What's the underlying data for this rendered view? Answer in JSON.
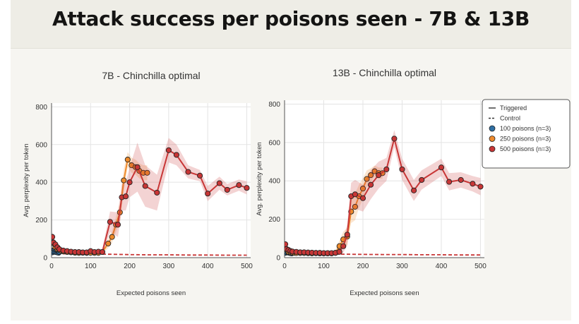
{
  "title": "Attack success per poisons seen - 7B & 13B",
  "legend": {
    "items": [
      {
        "label": "Triggered",
        "kind": "solid"
      },
      {
        "label": "Control",
        "kind": "dashed"
      },
      {
        "label": "100 poisons (n=3)",
        "color": "#2f6fa3",
        "kind": "dot"
      },
      {
        "label": "250 poisons (n=3)",
        "color": "#ee8a2b",
        "kind": "dot"
      },
      {
        "label": "500 poisons (n=3)",
        "color": "#c83636",
        "kind": "dot"
      }
    ]
  },
  "colors": {
    "series_100": "#2f6fa3",
    "series_250": "#ee8a2b",
    "series_500": "#c83636",
    "grid": "#e4e4e4"
  },
  "chart_data": [
    {
      "type": "line",
      "title": "7B - Chinchilla optimal",
      "xlabel": "Expected poisons seen",
      "ylabel": "Avg. perplexity per token",
      "xlim": [
        0,
        510
      ],
      "ylim": [
        0,
        820
      ],
      "xticks": [
        0,
        100,
        200,
        300,
        400,
        500
      ],
      "yticks": [
        0,
        200,
        400,
        600,
        800
      ],
      "grid": true,
      "series": [
        {
          "name": "100 poisons (n=3)",
          "color": "#2f6fa3",
          "kind": "triggered",
          "x": [
            2,
            4,
            6,
            8,
            10,
            12,
            14,
            16,
            18,
            20
          ],
          "y": [
            28,
            38,
            32,
            42,
            30,
            40,
            28,
            35,
            26,
            30
          ],
          "band": [
            15,
            18,
            15,
            18,
            14,
            16,
            12,
            14,
            12,
            12
          ]
        },
        {
          "name": "250 poisons (n=3)",
          "color": "#ee8a2b",
          "kind": "triggered",
          "x": [
            5,
            10,
            15,
            20,
            25,
            30,
            40,
            50,
            60,
            70,
            80,
            90,
            100,
            110,
            120,
            130,
            145,
            155,
            165,
            175,
            185,
            195,
            205,
            215,
            225,
            235,
            245
          ],
          "y": [
            75,
            55,
            45,
            40,
            36,
            33,
            30,
            28,
            26,
            25,
            26,
            25,
            26,
            25,
            25,
            30,
            75,
            110,
            175,
            240,
            410,
            520,
            490,
            480,
            460,
            450,
            450
          ],
          "band": [
            25,
            20,
            15,
            12,
            10,
            10,
            8,
            8,
            8,
            8,
            8,
            8,
            8,
            8,
            8,
            10,
            25,
            30,
            40,
            50,
            60,
            40,
            40,
            40,
            40,
            40,
            40
          ]
        },
        {
          "name": "500 poisons (n=3)",
          "color": "#c83636",
          "kind": "triggered",
          "x": [
            2,
            5,
            10,
            15,
            20,
            30,
            40,
            50,
            60,
            70,
            80,
            90,
            100,
            110,
            120,
            130,
            150,
            170,
            180,
            190,
            200,
            220,
            240,
            270,
            300,
            320,
            350,
            380,
            400,
            430,
            450,
            480,
            500
          ],
          "y": [
            110,
            80,
            70,
            55,
            45,
            38,
            35,
            32,
            30,
            30,
            28,
            28,
            35,
            30,
            32,
            30,
            190,
            175,
            320,
            325,
            400,
            480,
            380,
            345,
            570,
            545,
            455,
            435,
            340,
            395,
            360,
            385,
            370
          ],
          "band": [
            30,
            25,
            20,
            15,
            12,
            10,
            10,
            8,
            8,
            8,
            8,
            8,
            8,
            8,
            8,
            15,
            55,
            65,
            70,
            75,
            80,
            130,
            110,
            95,
            65,
            55,
            35,
            30,
            40,
            35,
            30,
            30,
            35
          ]
        },
        {
          "name": "Control",
          "color": "#c83636",
          "kind": "control",
          "x": [
            0,
            50,
            100,
            150,
            200,
            250,
            300,
            350,
            400,
            450,
            500
          ],
          "y": [
            22,
            20,
            19,
            18,
            16,
            15,
            15,
            14,
            14,
            13,
            13
          ]
        }
      ]
    },
    {
      "type": "line",
      "title": "13B - Chinchilla optimal",
      "xlabel": "Expected poisons seen",
      "ylabel": "Avg. perplexity per token",
      "xlim": [
        0,
        510
      ],
      "ylim": [
        0,
        820
      ],
      "xticks": [
        0,
        100,
        200,
        300,
        400,
        500
      ],
      "yticks": [
        0,
        200,
        400,
        600,
        800
      ],
      "grid": true,
      "series": [
        {
          "name": "100 poisons (n=3)",
          "color": "#2f6fa3",
          "kind": "triggered",
          "x": [
            2,
            4,
            6,
            8,
            10,
            12,
            14,
            16,
            18,
            20
          ],
          "y": [
            25,
            32,
            28,
            35,
            26,
            30,
            24,
            28,
            22,
            26
          ],
          "band": [
            12,
            14,
            12,
            14,
            10,
            12,
            10,
            10,
            10,
            10
          ]
        },
        {
          "name": "250 poisons (n=3)",
          "color": "#ee8a2b",
          "kind": "triggered",
          "x": [
            5,
            10,
            15,
            20,
            25,
            30,
            40,
            50,
            60,
            70,
            80,
            90,
            100,
            110,
            120,
            130,
            140,
            150,
            160,
            170,
            180,
            190,
            200,
            210,
            220,
            230,
            240,
            250
          ],
          "y": [
            40,
            30,
            28,
            26,
            25,
            24,
            24,
            24,
            23,
            22,
            23,
            22,
            22,
            22,
            22,
            25,
            60,
            95,
            110,
            240,
            265,
            320,
            360,
            410,
            430,
            450,
            440,
            440
          ],
          "band": [
            15,
            12,
            10,
            10,
            8,
            8,
            8,
            8,
            8,
            8,
            8,
            8,
            8,
            8,
            8,
            10,
            30,
            40,
            45,
            60,
            70,
            60,
            55,
            45,
            35,
            30,
            30,
            30
          ]
        },
        {
          "name": "500 poisons (n=3)",
          "color": "#c83636",
          "kind": "triggered",
          "x": [
            2,
            5,
            10,
            15,
            20,
            30,
            40,
            50,
            60,
            70,
            80,
            90,
            100,
            110,
            120,
            130,
            140,
            150,
            160,
            170,
            180,
            200,
            220,
            240,
            260,
            280,
            300,
            330,
            350,
            400,
            420,
            450,
            480,
            500
          ],
          "y": [
            70,
            45,
            40,
            35,
            32,
            30,
            28,
            28,
            27,
            26,
            25,
            25,
            24,
            24,
            24,
            25,
            30,
            60,
            120,
            320,
            330,
            310,
            380,
            430,
            460,
            620,
            460,
            350,
            405,
            470,
            395,
            405,
            385,
            370
          ],
          "band": [
            20,
            15,
            12,
            10,
            10,
            8,
            8,
            8,
            8,
            8,
            8,
            8,
            8,
            8,
            8,
            10,
            15,
            35,
            55,
            70,
            75,
            70,
            75,
            70,
            60,
            45,
            55,
            55,
            50,
            45,
            45,
            40,
            40,
            45
          ]
        },
        {
          "name": "Control",
          "color": "#c83636",
          "kind": "control",
          "x": [
            0,
            50,
            100,
            150,
            200,
            250,
            300,
            350,
            400,
            450,
            500
          ],
          "y": [
            20,
            19,
            18,
            18,
            17,
            16,
            16,
            15,
            15,
            14,
            14
          ]
        }
      ]
    }
  ]
}
